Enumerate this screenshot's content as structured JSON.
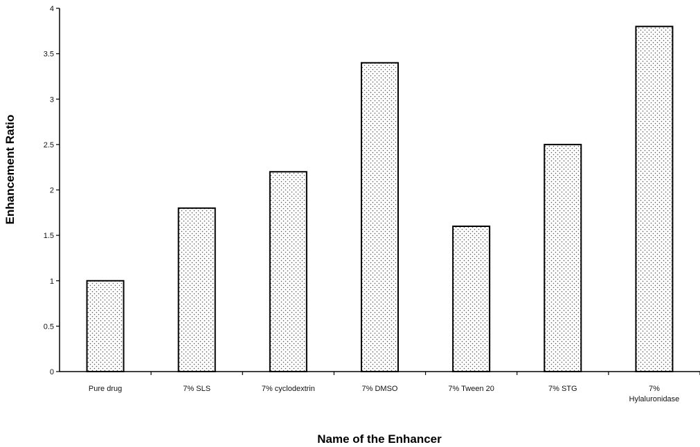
{
  "chart_data": {
    "type": "bar",
    "title": "",
    "xlabel": "Name of the Enhancer",
    "ylabel": "Enhancement Ratio",
    "categories": [
      [
        "Pure drug"
      ],
      [
        "7% SLS"
      ],
      [
        "7% cyclodextrin"
      ],
      [
        "7% DMSO"
      ],
      [
        "7% Tween 20"
      ],
      [
        "7% STG"
      ],
      [
        "7%",
        "Hylaluronidase"
      ]
    ],
    "values": [
      1.0,
      1.8,
      2.2,
      3.4,
      1.6,
      2.5,
      3.8
    ],
    "ylim": [
      0,
      4
    ],
    "yticks": [
      "0",
      "0.5",
      "1",
      "1.5",
      "2",
      "2.5",
      "3",
      "3.5",
      "4"
    ],
    "grid": false,
    "legend": "none",
    "bar_fill": "dotted",
    "colors": {
      "bar_stroke": "#000000",
      "dot": "#555555",
      "axis": "#000000"
    }
  }
}
